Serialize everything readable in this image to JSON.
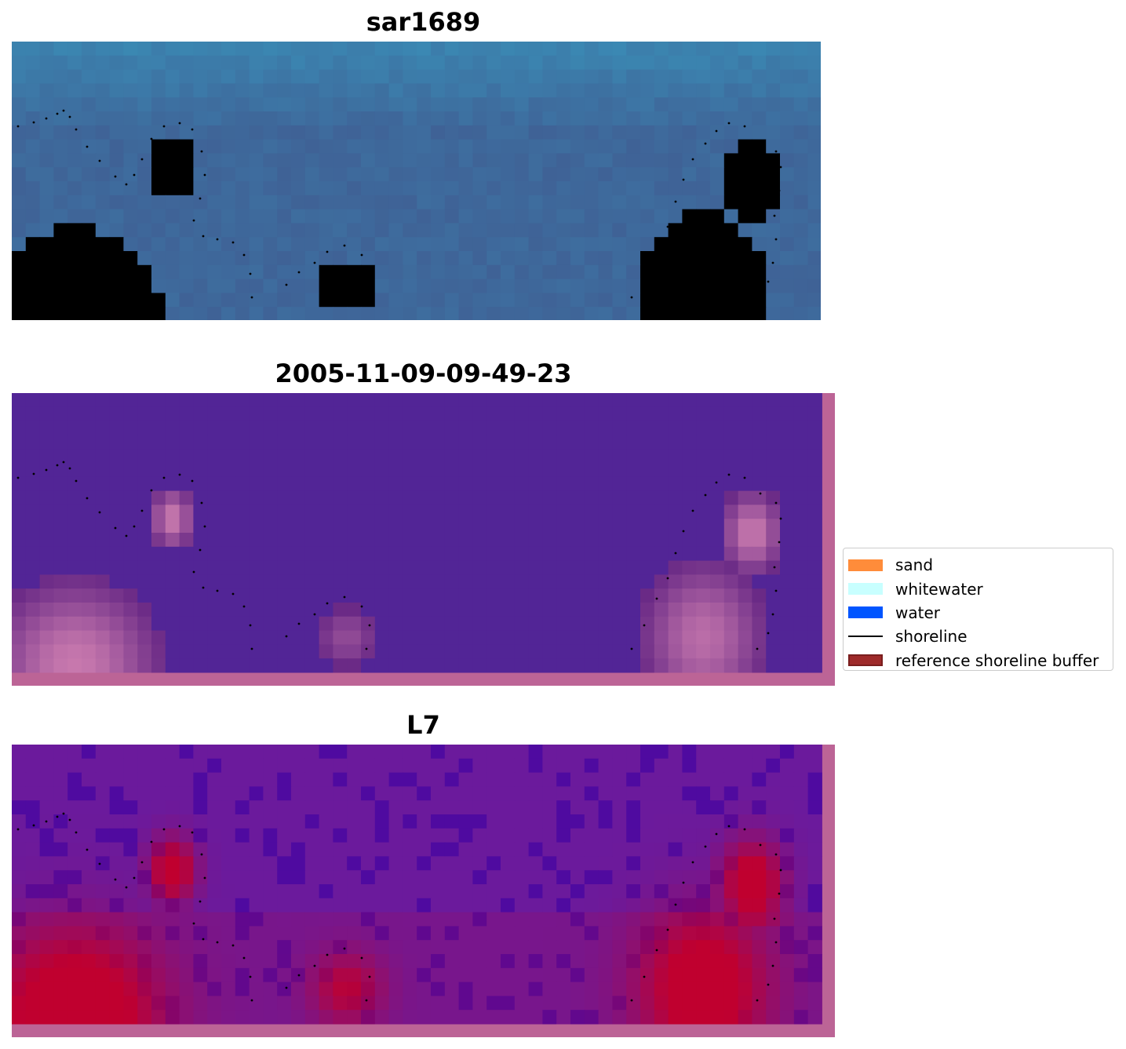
{
  "panels": [
    {
      "title": "sar1689"
    },
    {
      "title": "2005-11-09-09-49-23"
    },
    {
      "title": "L7"
    }
  ],
  "legend": {
    "items": [
      {
        "label": "sand",
        "color": "#ff8c3a",
        "kind": "patch"
      },
      {
        "label": "whitewater",
        "color": "#c8ffff",
        "kind": "patch"
      },
      {
        "label": "water",
        "color": "#0055ff",
        "kind": "patch"
      },
      {
        "label": "shoreline",
        "color": "#000000",
        "kind": "line"
      },
      {
        "label": "reference shoreline buffer",
        "color": "#9e2a2a",
        "kind": "patch"
      }
    ]
  },
  "colors": {
    "rgb_water": "#4a6f9e",
    "class_background": "#522596",
    "class_buffer_edge": "#bc6496",
    "index_low": "#6b1a9c",
    "index_high": "#c0002f"
  }
}
